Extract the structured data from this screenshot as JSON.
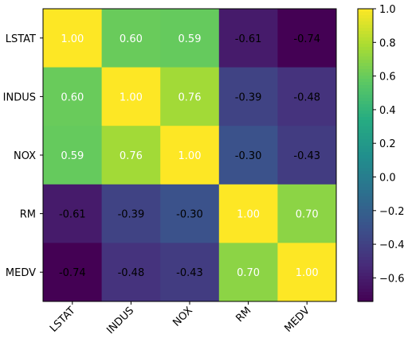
{
  "chart_data": {
    "type": "heatmap",
    "labels": [
      "LSTAT",
      "INDUS",
      "NOX",
      "RM",
      "MEDV"
    ],
    "values": [
      [
        1.0,
        0.6,
        0.59,
        -0.61,
        -0.74
      ],
      [
        0.6,
        1.0,
        0.76,
        -0.39,
        -0.48
      ],
      [
        0.59,
        0.76,
        1.0,
        -0.3,
        -0.43
      ],
      [
        -0.61,
        -0.39,
        -0.3,
        1.0,
        0.7
      ],
      [
        -0.74,
        -0.48,
        -0.43,
        0.7,
        1.0
      ]
    ],
    "cell_labels": [
      [
        "1.00",
        "0.60",
        "0.59",
        "-0.61",
        "-0.74"
      ],
      [
        "0.60",
        "1.00",
        "0.76",
        "-0.39",
        "-0.48"
      ],
      [
        "0.59",
        "0.76",
        "1.00",
        "-0.30",
        "-0.43"
      ],
      [
        "-0.61",
        "-0.39",
        "-0.30",
        "1.00",
        "0.70"
      ],
      [
        "-0.74",
        "-0.48",
        "-0.43",
        "0.70",
        "1.00"
      ]
    ],
    "colormap": "viridis",
    "color_range": [
      -0.74,
      1.0
    ],
    "colorbar_ticks": [
      {
        "value": 1.0,
        "label": "1.0"
      },
      {
        "value": 0.8,
        "label": "0.8"
      },
      {
        "value": 0.6,
        "label": "0.6"
      },
      {
        "value": 0.4,
        "label": "0.4"
      },
      {
        "value": 0.2,
        "label": "0.2"
      },
      {
        "value": 0.0,
        "label": "0.0"
      },
      {
        "value": -0.2,
        "label": "−0.2"
      },
      {
        "value": -0.4,
        "label": "−0.4"
      },
      {
        "value": -0.6,
        "label": "−0.6"
      }
    ],
    "grid": false,
    "title": "",
    "xlabel": "",
    "ylabel": ""
  }
}
